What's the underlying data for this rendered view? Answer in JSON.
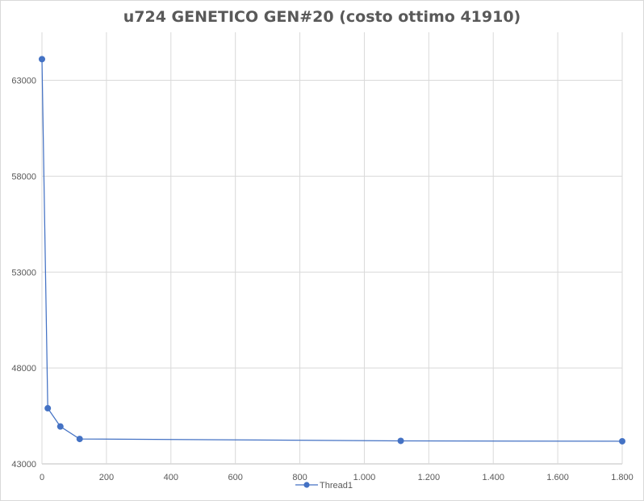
{
  "chart_data": {
    "type": "scatter",
    "title": "u724 GENETICO  GEN#20 (costo ottimo 41910)",
    "xlabel": "",
    "ylabel": "",
    "xlim": [
      0,
      1800
    ],
    "ylim": [
      43000,
      64000
    ],
    "x_ticks": [
      0,
      200,
      400,
      600,
      800,
      1000,
      1200,
      1400,
      1600,
      1800
    ],
    "x_tick_labels": [
      "0",
      "200",
      "400",
      "600",
      "800",
      "1.000",
      "1.200",
      "1.400",
      "1.600",
      "1.800"
    ],
    "y_ticks": [
      43000,
      48000,
      53000,
      58000,
      63000
    ],
    "y_tick_labels": [
      "43000",
      "48000",
      "53000",
      "58000",
      "63000"
    ],
    "grid": true,
    "legend_position": "bottom",
    "series": [
      {
        "name": "Thread1",
        "color": "#4472c4",
        "marker": "circle",
        "points": [
          {
            "x": 0,
            "y": 64100
          },
          {
            "x": 18,
            "y": 45900
          },
          {
            "x": 57,
            "y": 44950
          },
          {
            "x": 117,
            "y": 44300
          },
          {
            "x": 1113,
            "y": 44200
          },
          {
            "x": 1800,
            "y": 44180
          }
        ]
      }
    ]
  }
}
